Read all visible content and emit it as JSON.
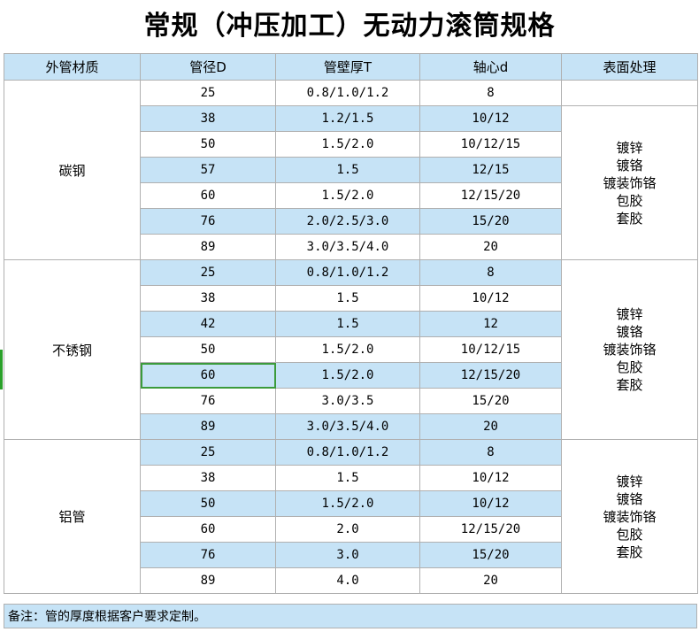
{
  "title": "常规（冲压加工）无动力滚筒规格",
  "headers": [
    "外管材质",
    "管径D",
    "管壁厚T",
    "轴心d",
    "表面处理"
  ],
  "groups": [
    {
      "material": "碳钢",
      "first_row_surface_blank": true,
      "surface": [
        "镀锌",
        "镀铬",
        "镀装饰铬",
        "包胶",
        "套胶"
      ],
      "rows": [
        [
          "25",
          "0.8/1.0/1.2",
          "8"
        ],
        [
          "38",
          "1.2/1.5",
          "10/12"
        ],
        [
          "50",
          "1.5/2.0",
          "10/12/15"
        ],
        [
          "57",
          "1.5",
          "12/15"
        ],
        [
          "60",
          "1.5/2.0",
          "12/15/20"
        ],
        [
          "76",
          "2.0/2.5/3.0",
          "15/20"
        ],
        [
          "89",
          "3.0/3.5/4.0",
          "20"
        ]
      ]
    },
    {
      "material": "不锈钢",
      "first_row_surface_blank": false,
      "surface": [
        "镀锌",
        "镀铬",
        "镀装饰铬",
        "包胶",
        "套胶"
      ],
      "rows": [
        [
          "25",
          "0.8/1.0/1.2",
          "8"
        ],
        [
          "38",
          "1.5",
          "10/12"
        ],
        [
          "42",
          "1.5",
          "12"
        ],
        [
          "50",
          "1.5/2.0",
          "10/12/15"
        ],
        [
          "60",
          "1.5/2.0",
          "12/15/20"
        ],
        [
          "76",
          "3.0/3.5",
          "15/20"
        ],
        [
          "89",
          "3.0/3.5/4.0",
          "20"
        ]
      ]
    },
    {
      "material": "铝管",
      "first_row_surface_blank": false,
      "surface": [
        "镀锌",
        "镀铬",
        "镀装饰铬",
        "包胶",
        "套胶"
      ],
      "rows": [
        [
          "25",
          "0.8/1.0/1.2",
          "8"
        ],
        [
          "38",
          "1.5",
          "10/12"
        ],
        [
          "50",
          "1.5/2.0",
          "10/12"
        ],
        [
          "60",
          "2.0",
          "12/15/20"
        ],
        [
          "76",
          "3.0",
          "15/20"
        ],
        [
          "89",
          "4.0",
          "20"
        ]
      ]
    }
  ],
  "note": "备注：管的厚度根据客户要求定制。",
  "colors": {
    "header_bg": "#c6e3f6",
    "band_bg": "#c6e3f6",
    "selection": "#3b9b3b"
  }
}
